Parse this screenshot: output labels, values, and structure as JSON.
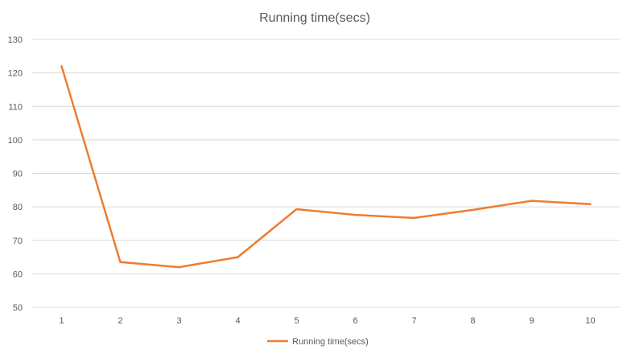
{
  "chart_data": {
    "type": "line",
    "title": "Running time(secs)",
    "xlabel": "",
    "ylabel": "",
    "categories": [
      "1",
      "2",
      "3",
      "4",
      "5",
      "6",
      "7",
      "8",
      "9",
      "10"
    ],
    "series": [
      {
        "name": "Running time(secs)",
        "color": "#ED7D31",
        "values": [
          122,
          63.5,
          62,
          65,
          79.3,
          77.6,
          76.7,
          79.1,
          81.8,
          80.8
        ]
      }
    ],
    "ylim": [
      50,
      130
    ],
    "yticks": [
      "50",
      "60",
      "70",
      "80",
      "90",
      "100",
      "110",
      "120",
      "130"
    ],
    "grid": true,
    "legend_position": "bottom"
  }
}
